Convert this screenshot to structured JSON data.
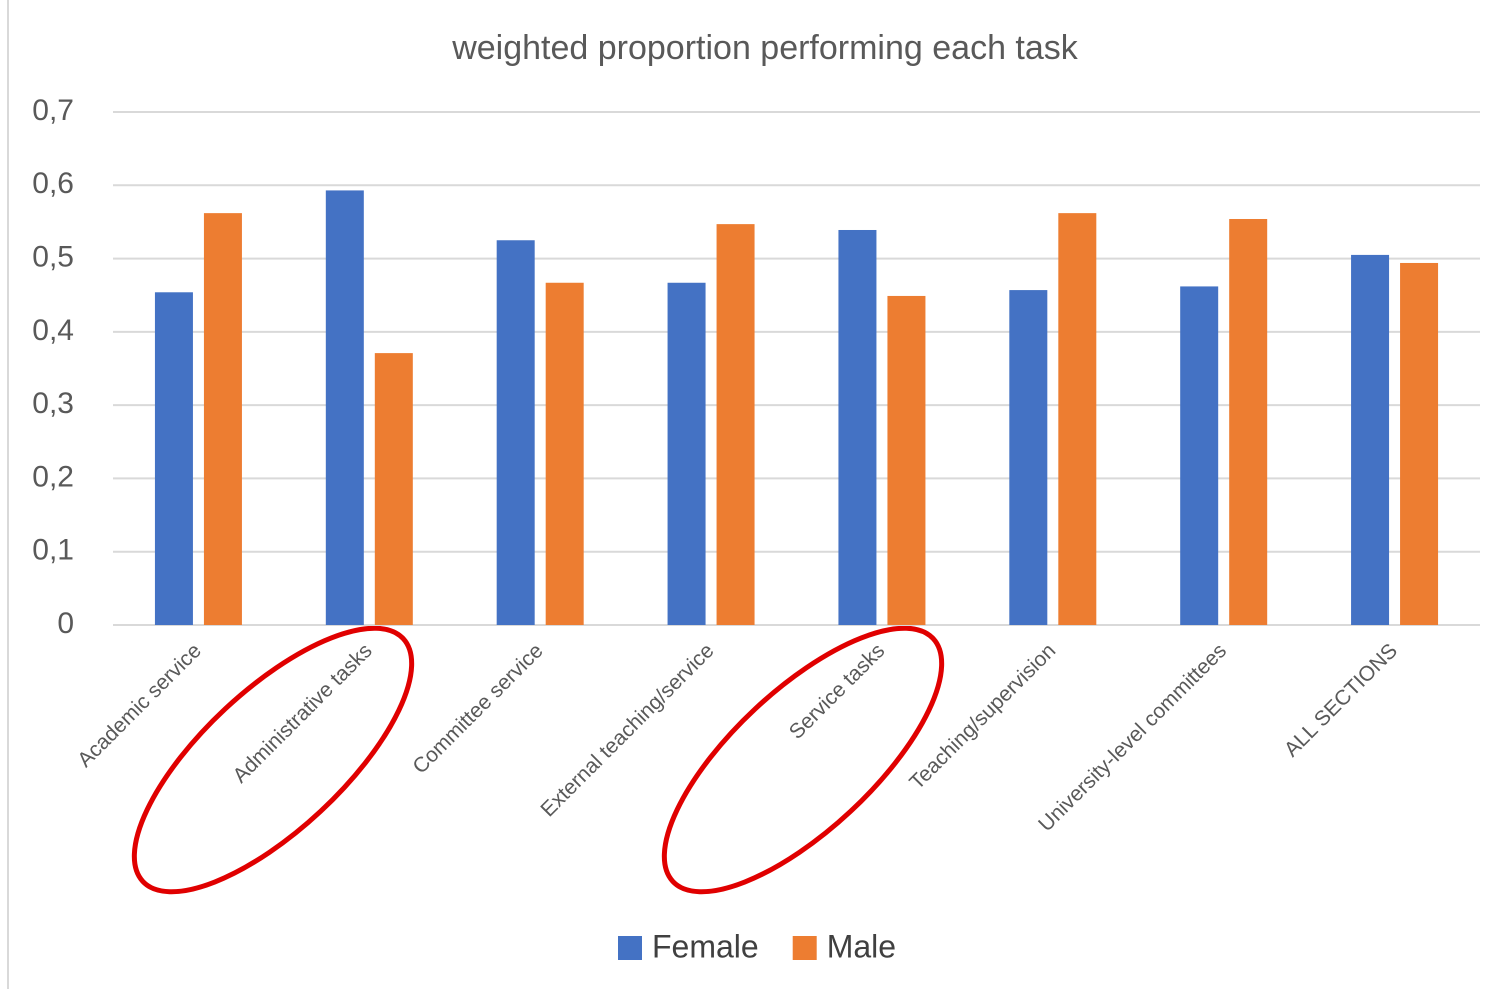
{
  "chart_data": {
    "type": "bar",
    "title": "weighted proportion performing each task",
    "categories": [
      "Academic service",
      "Administrative tasks",
      "Committee service",
      "External teaching/service",
      "Service tasks",
      "Teaching/supervision",
      "University-level committees",
      "ALL SECTIONS"
    ],
    "series": [
      {
        "name": "Female",
        "color": "#4472c4",
        "values": [
          0.454,
          0.593,
          0.525,
          0.467,
          0.539,
          0.457,
          0.462,
          0.505
        ]
      },
      {
        "name": "Male",
        "color": "#ed7d31",
        "values": [
          0.562,
          0.371,
          0.467,
          0.547,
          0.449,
          0.562,
          0.554,
          0.494
        ]
      }
    ],
    "ylim": [
      0,
      0.7
    ],
    "yticks": [
      0,
      {
        "value": 0.1,
        "label": "0,1"
      },
      {
        "value": 0.2,
        "label": "0,2"
      },
      {
        "value": 0.3,
        "label": "0,3"
      },
      {
        "value": 0.4,
        "label": "0,4"
      },
      {
        "value": 0.5,
        "label": "0,5"
      },
      {
        "value": 0.6,
        "label": "0,6"
      },
      {
        "value": 0.7,
        "label": "0,7"
      }
    ],
    "grid": true,
    "legend": "bottom"
  }
}
